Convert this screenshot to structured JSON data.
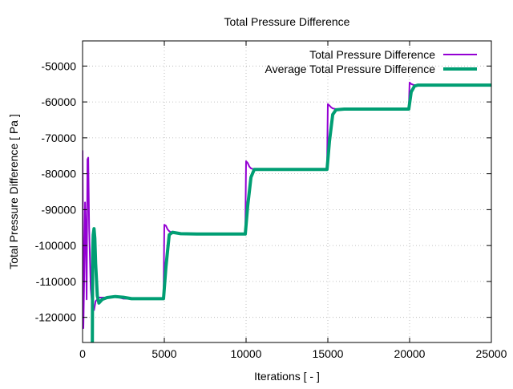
{
  "chart_data": {
    "type": "line",
    "title": "Total Pressure Difference",
    "xlabel": "Iterations [ - ]",
    "ylabel": "Total Pressure Difference [ Pa ]",
    "xlim": [
      0,
      25000
    ],
    "ylim": [
      -127000,
      -43000
    ],
    "xticks": [
      0,
      5000,
      10000,
      15000,
      20000,
      25000
    ],
    "yticks": [
      -120000,
      -110000,
      -100000,
      -90000,
      -80000,
      -70000,
      -60000,
      -50000
    ],
    "xtick_labels": [
      "0",
      "5000",
      "10000",
      "15000",
      "20000",
      "25000"
    ],
    "ytick_labels": [
      "-120000",
      "-110000",
      "-100000",
      "-90000",
      "-80000",
      "-70000",
      "-60000",
      "-50000"
    ],
    "grid": true,
    "legend_position": "top-right",
    "series": [
      {
        "name": "Total Pressure Difference",
        "color": "#9400d3",
        "x": [
          0,
          50,
          100,
          150,
          200,
          250,
          300,
          350,
          400,
          500,
          600,
          700,
          800,
          900,
          1000,
          1200,
          1500,
          2000,
          2500,
          3000,
          4000,
          4950,
          5000,
          5100,
          5200,
          5300,
          5500,
          6000,
          7000,
          8000,
          9000,
          9950,
          10000,
          10100,
          10200,
          10300,
          10500,
          11000,
          12000,
          13000,
          14000,
          14950,
          15000,
          15100,
          15200,
          15300,
          15500,
          16000,
          17000,
          18000,
          19000,
          19950,
          20000,
          20100,
          20200,
          20300,
          20500,
          21000,
          22000,
          23000,
          24000,
          25000
        ],
        "y": [
          -73500,
          -123000,
          -110000,
          -88000,
          -97000,
          -115000,
          -76000,
          -75500,
          -95000,
          -112000,
          -117000,
          -118000,
          -115500,
          -115000,
          -114500,
          -114500,
          -114500,
          -114200,
          -114800,
          -114800,
          -114800,
          -114800,
          -94200,
          -94500,
          -95500,
          -96000,
          -96500,
          -96800,
          -96800,
          -96800,
          -96800,
          -96800,
          -76500,
          -77000,
          -78000,
          -78500,
          -78800,
          -78800,
          -78800,
          -78800,
          -78800,
          -78800,
          -60600,
          -61000,
          -61500,
          -61800,
          -62000,
          -62000,
          -62000,
          -62000,
          -62000,
          -62000,
          -54600,
          -55000,
          -55200,
          -55300,
          -55300,
          -55300,
          -55300,
          -55300,
          -55300,
          -55300
        ]
      },
      {
        "name": "Average Total Pressure Difference",
        "color": "#009e73",
        "x": [
          600,
          620,
          650,
          700,
          750,
          800,
          900,
          1000,
          1200,
          1500,
          2000,
          2500,
          3000,
          4000,
          4950,
          5100,
          5300,
          5500,
          6000,
          7000,
          8000,
          9000,
          9950,
          10100,
          10300,
          10500,
          11000,
          12000,
          13000,
          14000,
          14950,
          15100,
          15300,
          15500,
          16000,
          17000,
          18000,
          19000,
          19950,
          20100,
          20300,
          20500,
          21000,
          22000,
          23000,
          24000,
          25000
        ],
        "y": [
          -127000,
          -102000,
          -97000,
          -95300,
          -98000,
          -105000,
          -114000,
          -116000,
          -115000,
          -114500,
          -114200,
          -114400,
          -114800,
          -114800,
          -114800,
          -106000,
          -97000,
          -96300,
          -96700,
          -96800,
          -96800,
          -96800,
          -96800,
          -89000,
          -81000,
          -78800,
          -78800,
          -78800,
          -78800,
          -78800,
          -78800,
          -71000,
          -63500,
          -62200,
          -62000,
          -62000,
          -62000,
          -62000,
          -62000,
          -57200,
          -55600,
          -55300,
          -55300,
          -55300,
          -55300,
          -55300,
          -55300
        ]
      }
    ]
  }
}
